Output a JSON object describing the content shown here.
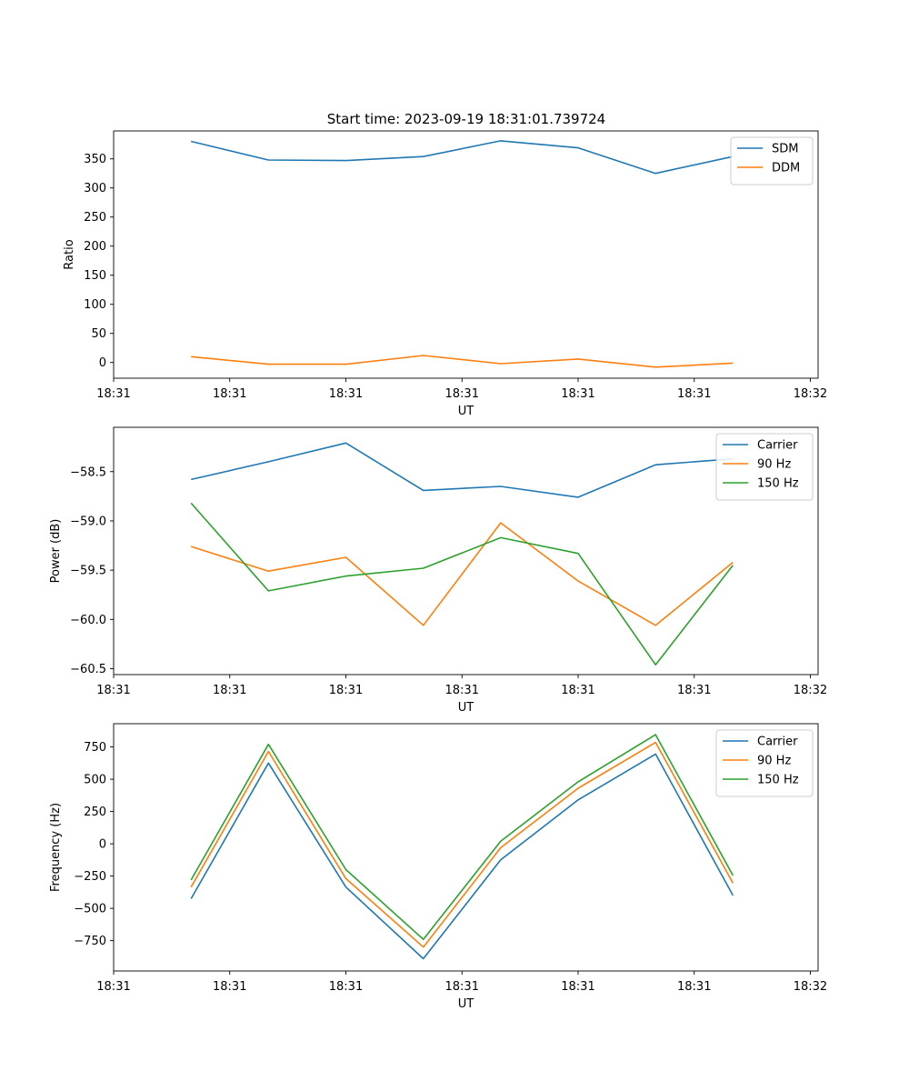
{
  "figure_title": "Start time: 2023-09-19 18:31:01.739724",
  "colors": {
    "blue": "#1f77b4",
    "orange": "#ff7f0e",
    "green": "#2ca02c"
  },
  "chart_data": [
    {
      "type": "line",
      "title": "Start time: 2023-09-19 18:31:01.739724",
      "xlabel": "UT",
      "ylabel": "Ratio",
      "x": [
        1,
        2,
        3,
        4,
        5,
        6,
        7,
        8
      ],
      "xlim": [
        0,
        9.1
      ],
      "ylim": [
        -27,
        398
      ],
      "xticks": [
        0,
        1.5,
        3,
        4.5,
        6,
        7.5,
        9
      ],
      "xticklabels": [
        "18:31",
        "18:31",
        "18:31",
        "18:31",
        "18:31",
        "18:31",
        "18:32"
      ],
      "yticks": [
        0,
        50,
        100,
        150,
        200,
        250,
        300,
        350
      ],
      "yticklabels": [
        "0",
        "50",
        "100",
        "150",
        "200",
        "250",
        "300",
        "350"
      ],
      "legend_position": "top-right",
      "series": [
        {
          "name": "SDM",
          "color": "#1f77b4",
          "values": [
            380,
            348,
            347,
            354,
            381,
            369,
            325,
            354
          ]
        },
        {
          "name": "DDM",
          "color": "#ff7f0e",
          "values": [
            10,
            -3,
            -3,
            12,
            -2,
            6,
            -8,
            -1
          ]
        }
      ]
    },
    {
      "type": "line",
      "xlabel": "UT",
      "ylabel": "Power (dB)",
      "x": [
        1,
        2,
        3,
        4,
        5,
        6,
        7,
        8
      ],
      "xlim": [
        0,
        9.1
      ],
      "ylim": [
        -60.56,
        -58.05
      ],
      "xticks": [
        0,
        1.5,
        3,
        4.5,
        6,
        7.5,
        9
      ],
      "xticklabels": [
        "18:31",
        "18:31",
        "18:31",
        "18:31",
        "18:31",
        "18:31",
        "18:32"
      ],
      "yticks": [
        -60.5,
        -60.0,
        -59.5,
        -59.0,
        -58.5
      ],
      "yticklabels": [
        "−60.5",
        "−60.0",
        "−59.5",
        "−59.0",
        "−58.5"
      ],
      "legend_position": "top-right",
      "series": [
        {
          "name": "Carrier",
          "color": "#1f77b4",
          "values": [
            -58.58,
            -58.4,
            -58.21,
            -58.69,
            -58.65,
            -58.76,
            -58.43,
            -58.37
          ]
        },
        {
          "name": "90 Hz",
          "color": "#ff7f0e",
          "values": [
            -59.26,
            -59.51,
            -59.37,
            -60.06,
            -59.02,
            -59.61,
            -60.06,
            -59.42
          ]
        },
        {
          "name": "150 Hz",
          "color": "#2ca02c",
          "values": [
            -58.82,
            -59.71,
            -59.56,
            -59.48,
            -59.17,
            -59.33,
            -60.46,
            -59.45
          ]
        }
      ]
    },
    {
      "type": "line",
      "xlabel": "UT",
      "ylabel": "Frequency (Hz)",
      "x": [
        1,
        2,
        3,
        4,
        5,
        6,
        7,
        8
      ],
      "xlim": [
        0,
        9.1
      ],
      "ylim": [
        -985,
        930
      ],
      "xticks": [
        0,
        1.5,
        3,
        4.5,
        6,
        7.5,
        9
      ],
      "xticklabels": [
        "18:31",
        "18:31",
        "18:31",
        "18:31",
        "18:31",
        "18:31",
        "18:32"
      ],
      "yticks": [
        -750,
        -500,
        -250,
        0,
        250,
        500,
        750
      ],
      "yticklabels": [
        "−750",
        "−500",
        "−250",
        "0",
        "250",
        "500",
        "750"
      ],
      "legend_position": "top-right",
      "series": [
        {
          "name": "Carrier",
          "color": "#1f77b4",
          "values": [
            -425,
            625,
            -335,
            -890,
            -125,
            340,
            695,
            -400
          ]
        },
        {
          "name": "90 Hz",
          "color": "#ff7f0e",
          "values": [
            -335,
            715,
            -270,
            -800,
            -30,
            430,
            785,
            -305
          ]
        },
        {
          "name": "150 Hz",
          "color": "#2ca02c",
          "values": [
            -280,
            770,
            -200,
            -740,
            20,
            480,
            845,
            -245
          ]
        }
      ]
    }
  ]
}
